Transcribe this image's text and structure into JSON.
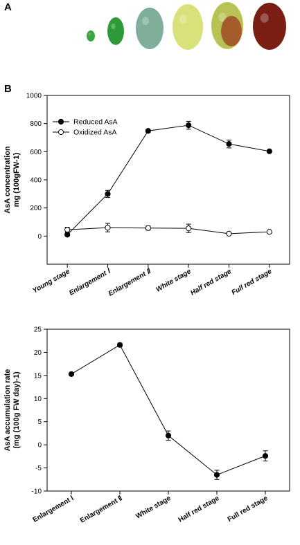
{
  "panels": {
    "a": "A",
    "b": "B"
  },
  "fruits": [
    {
      "stage": "young",
      "color": "#3aa63f"
    },
    {
      "stage": "enlargement-1",
      "color": "#2f9a3a"
    },
    {
      "stage": "enlargement-2",
      "color": "#7fae9a"
    },
    {
      "stage": "white",
      "color": "#d9e27a"
    },
    {
      "stage": "half-red",
      "color": "#b9c255"
    },
    {
      "stage": "full-red",
      "color": "#7a1e14"
    }
  ],
  "chart_data": [
    {
      "type": "line",
      "title": "",
      "xlabel": "",
      "ylabel_line1": "AsA concentration",
      "ylabel_line2": "mg (100gFW-1)",
      "categories": [
        "Young stage",
        "Enlargement Ⅰ",
        "Enlargement Ⅱ",
        "White stage",
        "Half red stage",
        "Full red stage"
      ],
      "ylim": [
        -200,
        1000
      ],
      "yticks": [
        0,
        200,
        400,
        600,
        800,
        1000
      ],
      "legend_position": "top-left",
      "grid": false,
      "series": [
        {
          "name": "Reduced AsA",
          "marker": "filled",
          "values": [
            10,
            300,
            748,
            788,
            655,
            603
          ],
          "errors": [
            8,
            25,
            10,
            28,
            28,
            8
          ]
        },
        {
          "name": "Oxidized AsA",
          "marker": "open",
          "values": [
            45,
            60,
            57,
            55,
            17,
            30
          ],
          "errors": [
            18,
            30,
            15,
            30,
            10,
            6
          ]
        }
      ]
    },
    {
      "type": "line",
      "title": "",
      "xlabel": "",
      "ylabel_line1": "AsA accumulation rate",
      "ylabel_line2": "(mg (100g FW day)-1)",
      "categories": [
        "Enlargement Ⅰ",
        "Enlargement Ⅱ",
        "White stage",
        "Half red stage",
        "Full red stage"
      ],
      "ylim": [
        -10,
        25
      ],
      "yticks": [
        -10,
        -5,
        0,
        5,
        10,
        15,
        20,
        25
      ],
      "grid": false,
      "series": [
        {
          "name": "",
          "marker": "filled",
          "values": [
            15.3,
            21.6,
            2.0,
            -6.5,
            -2.4
          ],
          "errors": [
            0.3,
            0.4,
            1.0,
            1.0,
            1.1
          ]
        }
      ]
    }
  ]
}
